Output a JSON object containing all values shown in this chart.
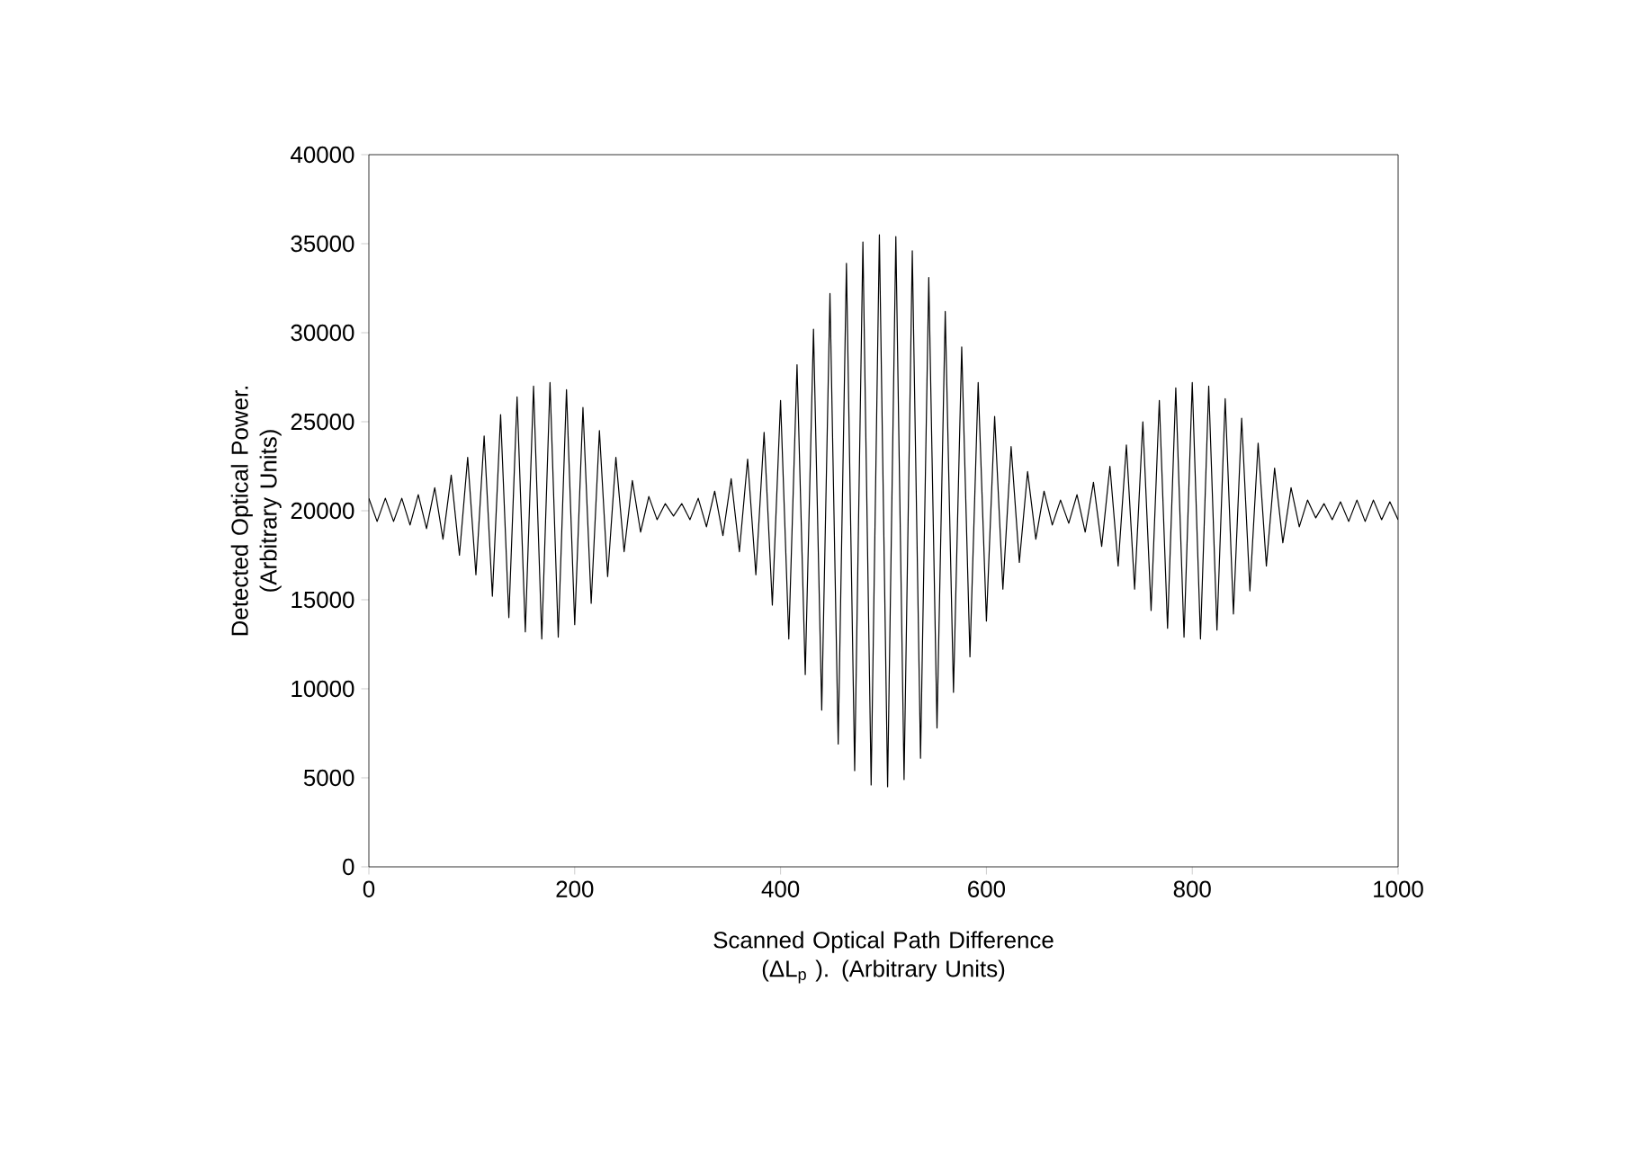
{
  "chart_data": {
    "type": "line",
    "xlabel": "Scanned Optical Path Difference (ΔL$_{p}$ ). (Arbitrary Units)",
    "ylabel": "Detected Optical Power. (Arbitrary Units)",
    "xlim": [
      0,
      1000
    ],
    "xticks": [
      0,
      200,
      400,
      600,
      800,
      1000
    ],
    "ylim": [
      0,
      40000
    ],
    "yticks": [
      0,
      5000,
      10000,
      15000,
      20000,
      25000,
      30000,
      35000,
      40000
    ],
    "grid": false,
    "marker": "none",
    "line_style": "solid",
    "series": [
      {
        "color": "#000000",
        "x": [
          0,
          8,
          16,
          24,
          32,
          40,
          48,
          56,
          64,
          72,
          80,
          88,
          96,
          104,
          112,
          120,
          128,
          136,
          144,
          152,
          160,
          168,
          176,
          184,
          192,
          200,
          208,
          216,
          224,
          232,
          240,
          248,
          256,
          264,
          272,
          280,
          288,
          296,
          304,
          312,
          320,
          328,
          336,
          344,
          352,
          360,
          368,
          376,
          384,
          392,
          400,
          408,
          416,
          424,
          432,
          440,
          448,
          456,
          464,
          472,
          480,
          488,
          496,
          504,
          512,
          520,
          528,
          536,
          544,
          552,
          560,
          568,
          576,
          584,
          592,
          600,
          608,
          616,
          624,
          632,
          640,
          648,
          656,
          664,
          672,
          680,
          688,
          696,
          704,
          712,
          720,
          728,
          736,
          744,
          752,
          760,
          768,
          776,
          784,
          792,
          800,
          808,
          816,
          824,
          832,
          840,
          848,
          856,
          864,
          872,
          880,
          888,
          896,
          904,
          912,
          920,
          928,
          936,
          944,
          952,
          960,
          968,
          976,
          984,
          992,
          1000
        ],
        "values": [
          20700,
          19400,
          20700,
          19400,
          20700,
          19200,
          20900,
          19000,
          21300,
          18400,
          22000,
          17500,
          23000,
          16400,
          24200,
          15200,
          25400,
          14000,
          26400,
          13200,
          27000,
          12800,
          27200,
          12900,
          26800,
          13600,
          25800,
          14800,
          24500,
          16300,
          23000,
          17700,
          21700,
          18800,
          20800,
          19500,
          20400,
          19700,
          20400,
          19500,
          20700,
          19100,
          21100,
          18600,
          21800,
          17700,
          22900,
          16400,
          24400,
          14700,
          26200,
          12800,
          28200,
          10800,
          30200,
          8800,
          32200,
          6900,
          33900,
          5400,
          35100,
          4600,
          35500,
          4500,
          35400,
          4900,
          34600,
          6100,
          33100,
          7800,
          31200,
          9800,
          29200,
          11800,
          27200,
          13800,
          25300,
          15600,
          23600,
          17100,
          22200,
          18400,
          21100,
          19200,
          20600,
          19300,
          20900,
          18800,
          21600,
          18000,
          22500,
          16900,
          23700,
          15600,
          25000,
          14400,
          26200,
          13400,
          26900,
          12900,
          27200,
          12800,
          27000,
          13300,
          26300,
          14200,
          25200,
          15500,
          23800,
          16900,
          22400,
          18200,
          21300,
          19100,
          20600,
          19600,
          20400,
          19500,
          20500,
          19400,
          20600,
          19400,
          20600,
          19500,
          20500,
          19500
        ]
      }
    ]
  }
}
